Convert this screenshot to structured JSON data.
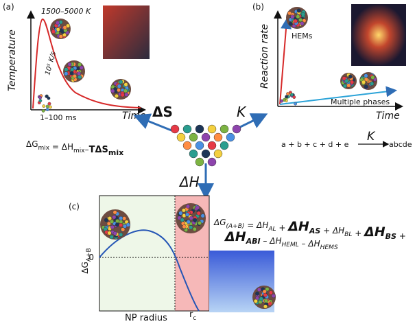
{
  "panel_a": {
    "label": "(a)",
    "y_axis": "Temperature",
    "x_axis": "Time",
    "peak": "1500–5000 K",
    "rate": "10⁵ K/s",
    "duration": "1–100 ms",
    "equation": [
      {
        "text": "ΔG",
        "sub": "mix"
      },
      {
        "text": " = "
      },
      {
        "text": "ΔH",
        "sub": "mix"
      },
      {
        "text": "–"
      },
      {
        "text": "TΔS",
        "sub": "mix",
        "bold": true
      }
    ]
  },
  "panel_b": {
    "label": "(b)",
    "y_axis": "Reaction rate",
    "x_axis": "Time",
    "fast": "HEMs",
    "slow": "Multiple phases",
    "reactants": "a + b + c + d + e",
    "constant": "K",
    "product": "abcde"
  },
  "center": {
    "entropy": "ΔS",
    "kinetics": "K",
    "enthalpy": "ΔH"
  },
  "panel_c": {
    "label": "(c)",
    "y_axis": {
      "text": "ΔG",
      "sub": "A+B"
    },
    "zero": "0",
    "x_axis": "NP radius",
    "critical": {
      "text": "r",
      "sub": "c"
    },
    "equation": [
      [
        {
          "text": "ΔG",
          "sub": "(A+B)"
        },
        {
          "text": " = "
        },
        {
          "text": "ΔH",
          "sub": "AL"
        },
        {
          "text": " + "
        },
        {
          "text": "ΔH",
          "sub": "AS",
          "bold": true
        },
        {
          "text": " + "
        },
        {
          "text": "ΔH",
          "sub": "BL"
        },
        {
          "text": " + "
        },
        {
          "text": "ΔH",
          "sub": "BS",
          "bold": true
        },
        {
          "text": " +"
        }
      ],
      [
        {
          "text": "ΔH",
          "sub": "ABI",
          "bold": true
        },
        {
          "text": " – "
        },
        {
          "text": "ΔH",
          "sub": "HEML"
        },
        {
          "text": " – "
        },
        {
          "text": "ΔH",
          "sub": "HEMS"
        }
      ]
    ]
  }
}
